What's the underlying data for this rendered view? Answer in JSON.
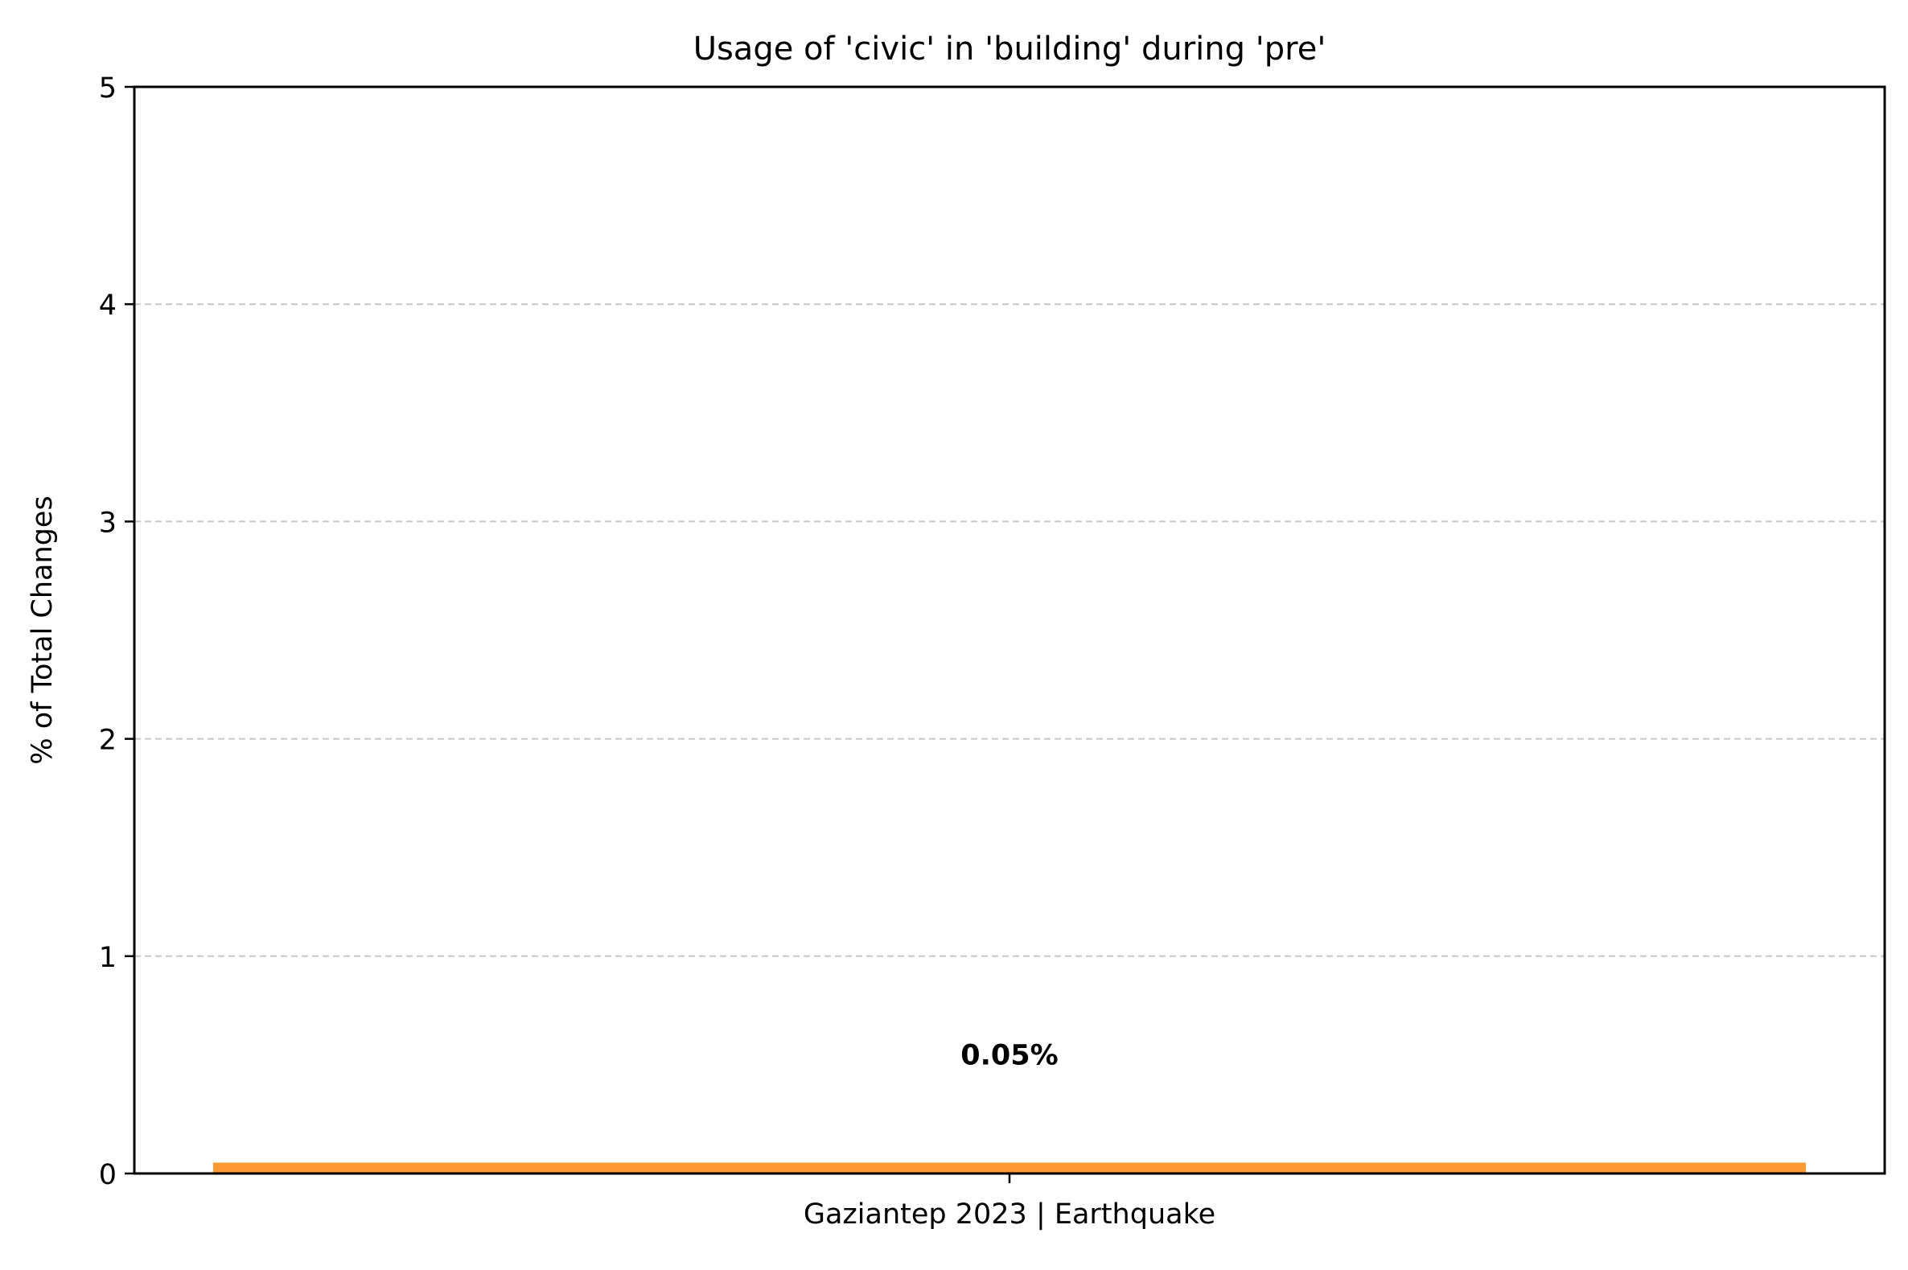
{
  "chart_data": {
    "type": "bar",
    "title": "Usage of 'civic' in 'building' during 'pre'",
    "xlabel": "",
    "ylabel": "% of Total Changes",
    "categories": [
      "Gaziantep 2023 | Earthquake"
    ],
    "values": [
      0.05
    ],
    "value_labels": [
      "0.05%"
    ],
    "ylim": [
      0,
      5
    ],
    "yticks": [
      "0",
      "1",
      "2",
      "3",
      "4",
      "5"
    ],
    "grid": "y-dashed",
    "legend": "none",
    "bar_color": "#ff9933",
    "grid_color": "#c8c8c8"
  }
}
